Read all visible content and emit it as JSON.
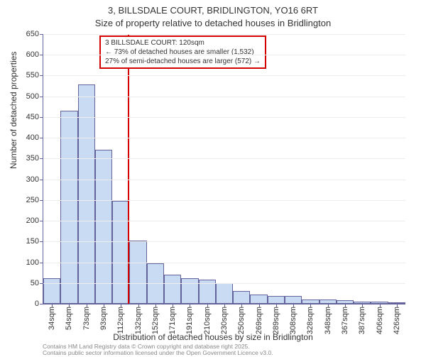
{
  "title_line1": "3, BILLSDALE COURT, BRIDLINGTON, YO16 6RT",
  "title_line2": "Size of property relative to detached houses in Bridlington",
  "y_axis_title": "Number of detached properties",
  "x_axis_title": "Distribution of detached houses by size in Bridlington",
  "footer_line1": "Contains HM Land Registry data © Crown copyright and database right 2025.",
  "footer_line2": "Contains public sector information licensed under the Open Government Licence v3.0.",
  "callout": {
    "line1": "3 BILLSDALE COURT: 120sqm",
    "line2": "← 73% of detached houses are smaller (1,532)",
    "line3": "27% of semi-detached houses are larger (572) →"
  },
  "chart": {
    "type": "histogram",
    "ylim": [
      0,
      650
    ],
    "ytick_step": 50,
    "background_color": "#ffffff",
    "grid_color": "#ededed",
    "axis_color": "#63629b",
    "bar_color": "#c9daf3",
    "bar_border_color": "#63629b",
    "reference_line_color": "#d40000",
    "reference_x_value": 120,
    "x_labels": [
      "34sqm",
      "54sqm",
      "73sqm",
      "93sqm",
      "112sqm",
      "132sqm",
      "152sqm",
      "171sqm",
      "191sqm",
      "210sqm",
      "230sqm",
      "250sqm",
      "269sqm",
      "289sqm",
      "308sqm",
      "328sqm",
      "348sqm",
      "367sqm",
      "387sqm",
      "406sqm",
      "426sqm"
    ],
    "values": [
      62,
      465,
      528,
      372,
      248,
      153,
      98,
      70,
      62,
      58,
      50,
      30,
      22,
      18,
      18,
      10,
      10,
      8,
      5,
      6,
      4
    ],
    "title_fontsize": 13,
    "label_fontsize": 12,
    "tick_fontsize": 11,
    "callout_fontsize": 10
  }
}
